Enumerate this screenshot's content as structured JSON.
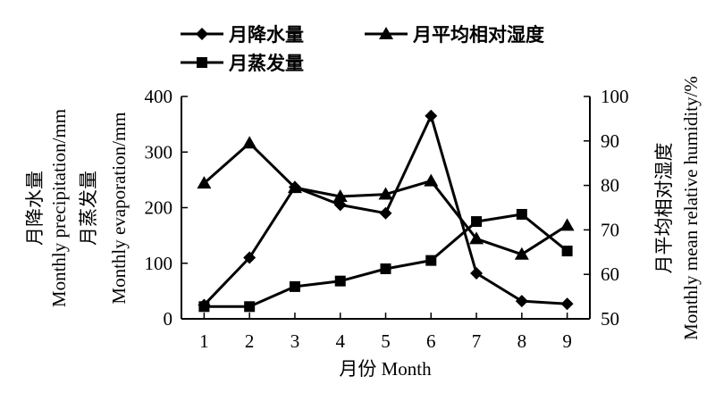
{
  "chart_data": {
    "type": "line",
    "x": [
      1,
      2,
      3,
      4,
      5,
      6,
      7,
      8,
      9
    ],
    "xlabel": "月份 Month",
    "ylabel_left_lines": [
      "月降水量",
      "Monthly precipitation/mm",
      "月蒸发量",
      "Monthly evaporation/mm"
    ],
    "ylabel_right_lines": [
      "月平均相对湿度",
      "Monthly mean relative humidity/%"
    ],
    "ylim_left": [
      0,
      400
    ],
    "yticks_left": [
      0,
      100,
      200,
      300,
      400
    ],
    "ylim_right": [
      50,
      100
    ],
    "yticks_right": [
      50,
      60,
      70,
      80,
      90,
      100
    ],
    "xticks": [
      1,
      2,
      3,
      4,
      5,
      6,
      7,
      8,
      9
    ],
    "grid": false,
    "legend_position": "top",
    "series": [
      {
        "name": "月降水量",
        "marker": "diamond",
        "axis": "left",
        "values": [
          25,
          110,
          237,
          205,
          190,
          365,
          82,
          32,
          27
        ]
      },
      {
        "name": "月蒸发量",
        "marker": "square",
        "axis": "left",
        "values": [
          22,
          22,
          58,
          68,
          90,
          105,
          175,
          188,
          122
        ]
      },
      {
        "name": "月平均相对湿度",
        "marker": "triangle",
        "axis": "right",
        "values": [
          80.5,
          89.5,
          79.5,
          77.5,
          78,
          81,
          68,
          64.5,
          71
        ]
      }
    ]
  }
}
